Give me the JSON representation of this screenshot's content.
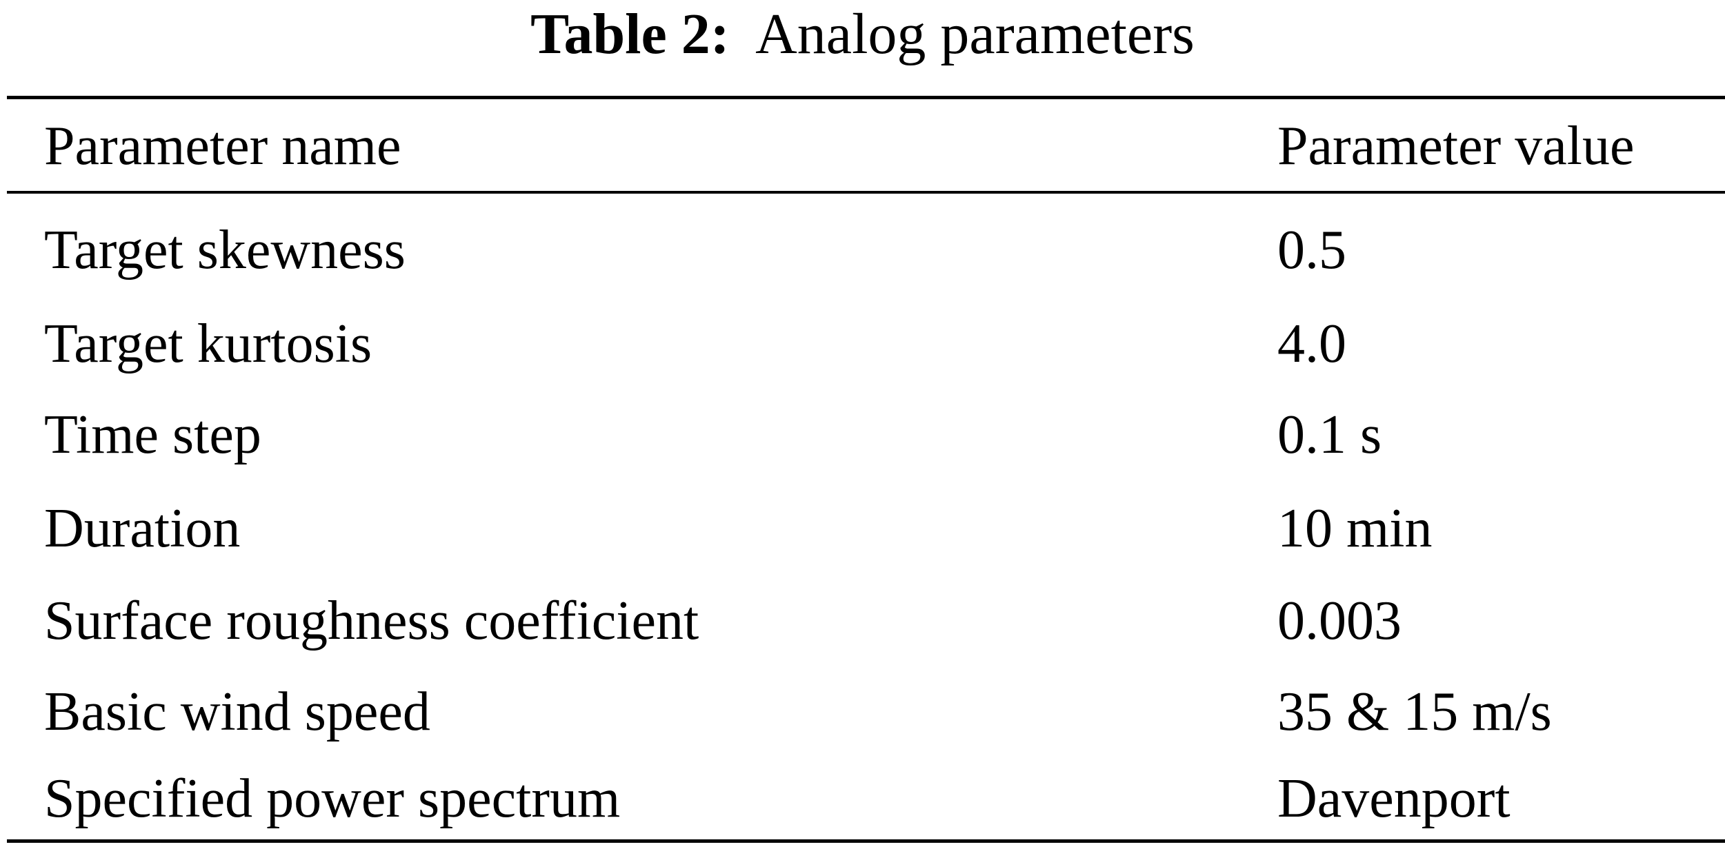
{
  "caption": {
    "label": "Table 2:",
    "title": "Analog parameters"
  },
  "table": {
    "headers": [
      "Parameter name",
      "Parameter value"
    ],
    "rows": [
      [
        "Target skewness",
        "0.5"
      ],
      [
        "Target kurtosis",
        "4.0"
      ],
      [
        "Time step",
        "0.1 s"
      ],
      [
        "Duration",
        "10 min"
      ],
      [
        "Surface roughness coefficient",
        "0.003"
      ],
      [
        "Basic wind speed",
        "35 & 15 m/s"
      ],
      [
        "Specified power spectrum",
        "Davenport"
      ]
    ]
  }
}
